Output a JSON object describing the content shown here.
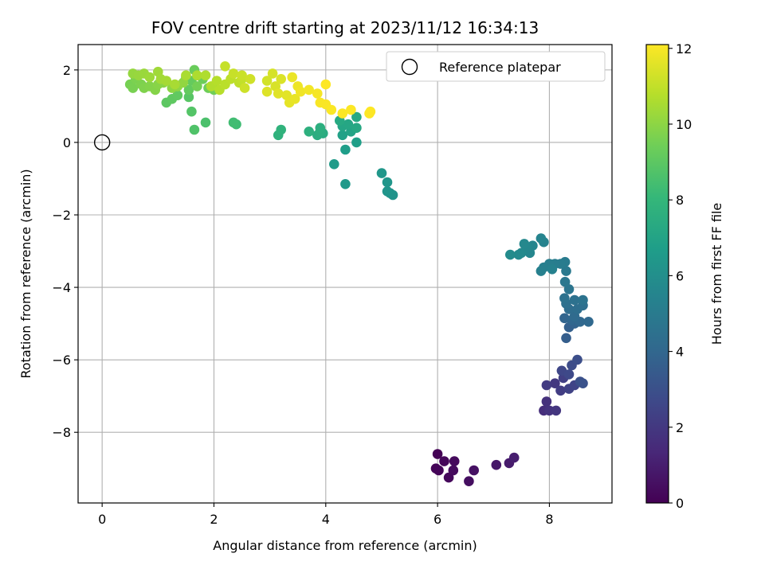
{
  "chart_data": {
    "type": "scatter",
    "title": "FOV centre drift starting at 2023/11/12 16:34:13",
    "xlabel": "Angular distance from reference (arcmin)",
    "ylabel": "Rotation from reference (arcmin)",
    "xlim": [
      -0.43,
      9.12
    ],
    "ylim": [
      -9.95,
      2.7
    ],
    "xticks": [
      0,
      2,
      4,
      6,
      8
    ],
    "yticks": [
      2,
      0,
      -2,
      -4,
      -6,
      -8
    ],
    "grid": true,
    "legend": {
      "label": "Reference platepar",
      "placement": "upper-right"
    },
    "reference_point": {
      "x": 0,
      "y": 0
    },
    "colorbar": {
      "label": "Hours from first FF file",
      "colormap": "viridis",
      "range": [
        0,
        12.1
      ],
      "ticks": [
        0,
        2,
        4,
        6,
        8,
        10,
        12
      ]
    },
    "colormap_stops": [
      "#440154",
      "#482878",
      "#3e4989",
      "#31688e",
      "#26828e",
      "#1f9e89",
      "#35b779",
      "#6ece58",
      "#b5de2b",
      "#fde725"
    ],
    "series": [
      {
        "points": [
          [
            6.0,
            -8.6,
            0.05
          ],
          [
            5.97,
            -9.0,
            0.1
          ],
          [
            6.02,
            -9.05,
            0.15
          ],
          [
            6.12,
            -8.8,
            0.2
          ],
          [
            6.2,
            -9.25,
            0.25
          ],
          [
            6.3,
            -8.8,
            0.3
          ],
          [
            6.28,
            -9.05,
            0.35
          ],
          [
            6.56,
            -9.35,
            0.45
          ],
          [
            6.65,
            -9.05,
            0.55
          ],
          [
            7.05,
            -8.9,
            0.75
          ],
          [
            7.28,
            -8.85,
            0.9
          ],
          [
            7.37,
            -8.7,
            1.0
          ],
          [
            7.9,
            -7.4,
            1.6
          ],
          [
            7.95,
            -7.15,
            1.7
          ],
          [
            8.0,
            -7.4,
            1.8
          ],
          [
            8.12,
            -7.4,
            1.9
          ],
          [
            8.1,
            -6.65,
            2.0
          ],
          [
            7.95,
            -6.7,
            2.1
          ],
          [
            8.2,
            -6.85,
            2.2
          ],
          [
            8.25,
            -6.5,
            2.3
          ],
          [
            8.35,
            -6.8,
            2.4
          ],
          [
            8.45,
            -6.7,
            2.5
          ],
          [
            8.22,
            -6.3,
            2.6
          ],
          [
            8.35,
            -6.4,
            2.7
          ],
          [
            8.4,
            -6.15,
            2.8
          ],
          [
            8.5,
            -6.0,
            2.9
          ],
          [
            8.55,
            -6.6,
            3.0
          ],
          [
            8.6,
            -6.65,
            3.1
          ],
          [
            8.3,
            -5.4,
            3.6
          ],
          [
            8.35,
            -5.1,
            3.7
          ],
          [
            8.45,
            -5.0,
            3.8
          ],
          [
            8.27,
            -4.85,
            3.9
          ],
          [
            8.4,
            -4.9,
            4.0
          ],
          [
            8.55,
            -4.95,
            4.05
          ],
          [
            8.7,
            -4.95,
            4.1
          ],
          [
            8.45,
            -4.8,
            4.2
          ],
          [
            8.35,
            -4.6,
            4.3
          ],
          [
            8.5,
            -4.6,
            4.35
          ],
          [
            8.6,
            -4.5,
            4.4
          ],
          [
            8.3,
            -4.45,
            4.45
          ],
          [
            8.45,
            -4.35,
            4.5
          ],
          [
            8.27,
            -4.3,
            4.55
          ],
          [
            8.6,
            -4.35,
            4.6
          ],
          [
            8.35,
            -4.05,
            4.7
          ],
          [
            8.28,
            -3.85,
            4.8
          ],
          [
            8.3,
            -3.55,
            4.9
          ],
          [
            8.28,
            -3.3,
            5.0
          ],
          [
            8.2,
            -3.35,
            5.05
          ],
          [
            8.1,
            -3.35,
            5.1
          ],
          [
            8.0,
            -3.35,
            5.15
          ],
          [
            7.9,
            -3.45,
            5.2
          ],
          [
            7.85,
            -3.55,
            5.3
          ],
          [
            8.05,
            -3.5,
            5.35
          ],
          [
            7.9,
            -2.75,
            5.4
          ],
          [
            7.85,
            -2.65,
            5.45
          ],
          [
            7.7,
            -2.85,
            5.5
          ],
          [
            7.65,
            -3.05,
            5.55
          ],
          [
            7.6,
            -2.9,
            5.6
          ],
          [
            7.55,
            -2.8,
            5.65
          ],
          [
            7.5,
            -3.05,
            5.7
          ],
          [
            7.45,
            -3.1,
            5.75
          ],
          [
            7.3,
            -3.1,
            5.8
          ],
          [
            5.2,
            -1.45,
            6.2
          ],
          [
            5.15,
            -1.4,
            6.25
          ],
          [
            5.1,
            -1.35,
            6.3
          ],
          [
            5.1,
            -1.1,
            6.35
          ],
          [
            5.0,
            -0.85,
            6.4
          ],
          [
            4.35,
            -1.15,
            6.5
          ],
          [
            4.15,
            -0.6,
            6.6
          ],
          [
            4.35,
            -0.2,
            6.7
          ],
          [
            4.55,
            0.0,
            6.8
          ],
          [
            4.3,
            0.2,
            6.9
          ],
          [
            4.45,
            0.3,
            7.0
          ],
          [
            4.3,
            0.45,
            7.1
          ],
          [
            4.4,
            0.5,
            7.15
          ],
          [
            4.55,
            0.4,
            7.2
          ],
          [
            4.55,
            0.7,
            7.25
          ],
          [
            4.25,
            0.6,
            7.3
          ],
          [
            3.95,
            0.25,
            7.4
          ],
          [
            3.85,
            0.2,
            7.5
          ],
          [
            3.9,
            0.3,
            7.55
          ],
          [
            3.9,
            0.4,
            7.6
          ],
          [
            3.7,
            0.3,
            7.65
          ],
          [
            3.15,
            0.2,
            7.75
          ],
          [
            3.2,
            0.35,
            7.8
          ],
          [
            2.4,
            0.5,
            8.3
          ],
          [
            2.35,
            0.55,
            8.35
          ],
          [
            1.85,
            0.55,
            8.6
          ],
          [
            1.65,
            0.35,
            8.7
          ],
          [
            1.6,
            0.85,
            8.8
          ],
          [
            1.55,
            1.25,
            8.9
          ],
          [
            1.15,
            1.1,
            9.0
          ],
          [
            1.25,
            1.2,
            9.05
          ],
          [
            1.35,
            1.3,
            9.1
          ],
          [
            1.55,
            1.45,
            9.15
          ],
          [
            1.6,
            1.7,
            9.2
          ],
          [
            1.5,
            1.8,
            9.25
          ],
          [
            1.65,
            2.0,
            9.3
          ],
          [
            1.8,
            1.75,
            9.35
          ],
          [
            1.9,
            1.5,
            9.4
          ],
          [
            2.0,
            1.45,
            9.45
          ],
          [
            1.7,
            1.55,
            9.5
          ],
          [
            0.5,
            1.6,
            9.55
          ],
          [
            0.55,
            1.5,
            9.6
          ],
          [
            0.6,
            1.75,
            9.65
          ],
          [
            0.7,
            1.6,
            9.7
          ],
          [
            0.75,
            1.5,
            9.75
          ],
          [
            0.85,
            1.55,
            9.8
          ],
          [
            0.95,
            1.45,
            9.85
          ],
          [
            1.0,
            1.6,
            9.9
          ],
          [
            1.1,
            1.65,
            9.95
          ],
          [
            1.25,
            1.5,
            10.0
          ],
          [
            1.35,
            1.55,
            10.05
          ],
          [
            1.45,
            1.65,
            10.1
          ],
          [
            0.55,
            1.9,
            10.15
          ],
          [
            0.65,
            1.85,
            10.2
          ],
          [
            0.75,
            1.9,
            10.25
          ],
          [
            0.85,
            1.8,
            10.3
          ],
          [
            1.0,
            1.95,
            10.35
          ],
          [
            1.05,
            1.75,
            10.4
          ],
          [
            1.15,
            1.7,
            10.45
          ],
          [
            1.3,
            1.6,
            10.5
          ],
          [
            1.5,
            1.85,
            10.55
          ],
          [
            1.7,
            1.85,
            10.6
          ],
          [
            1.85,
            1.85,
            10.65
          ],
          [
            1.95,
            1.55,
            10.7
          ],
          [
            2.05,
            1.7,
            10.75
          ],
          [
            2.1,
            1.45,
            10.8
          ],
          [
            2.2,
            1.6,
            10.85
          ],
          [
            2.3,
            1.75,
            10.9
          ],
          [
            2.45,
            1.65,
            10.95
          ],
          [
            2.5,
            1.75,
            11.0
          ],
          [
            2.2,
            2.1,
            11.05
          ],
          [
            2.35,
            1.9,
            11.1
          ],
          [
            2.5,
            1.85,
            11.15
          ],
          [
            2.55,
            1.5,
            11.2
          ],
          [
            2.65,
            1.75,
            11.25
          ],
          [
            2.95,
            1.7,
            11.3
          ],
          [
            3.05,
            1.9,
            11.35
          ],
          [
            3.1,
            1.55,
            11.4
          ],
          [
            3.2,
            1.75,
            11.45
          ],
          [
            2.95,
            1.4,
            11.5
          ],
          [
            3.15,
            1.35,
            11.55
          ],
          [
            3.3,
            1.3,
            11.6
          ],
          [
            3.35,
            1.1,
            11.65
          ],
          [
            3.45,
            1.2,
            11.7
          ],
          [
            3.4,
            1.8,
            11.75
          ],
          [
            3.5,
            1.55,
            11.8
          ],
          [
            3.55,
            1.4,
            11.85
          ],
          [
            3.7,
            1.45,
            11.9
          ],
          [
            3.85,
            1.35,
            11.95
          ],
          [
            3.9,
            1.1,
            12.0
          ],
          [
            4.0,
            1.05,
            12.02
          ],
          [
            4.1,
            0.9,
            12.04
          ],
          [
            4.3,
            0.8,
            12.06
          ],
          [
            4.45,
            0.9,
            12.08
          ],
          [
            4.8,
            0.85,
            12.1
          ],
          [
            4.0,
            1.6,
            12.1
          ],
          [
            4.78,
            0.8,
            12.1
          ]
        ]
      }
    ]
  }
}
